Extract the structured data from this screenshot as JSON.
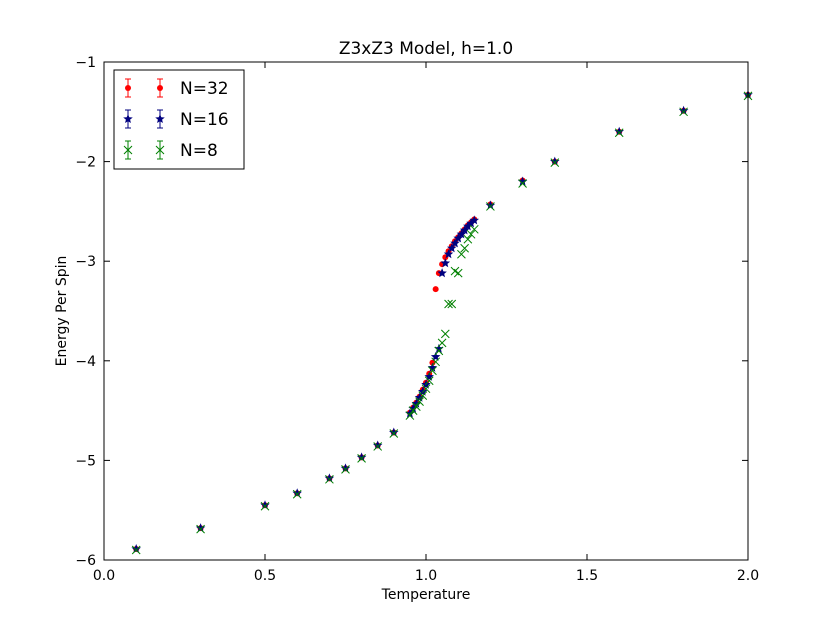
{
  "chart_data": {
    "type": "scatter",
    "title": "Z3xZ3 Model, h=1.0",
    "xlabel": "Temperature",
    "ylabel": "Energy Per Spin",
    "xlim": [
      0.0,
      2.0
    ],
    "ylim": [
      -6,
      -1
    ],
    "xticks": [
      "0.0",
      "0.5",
      "1.0",
      "1.5",
      "2.0"
    ],
    "yticks": [
      "−6",
      "−5",
      "−4",
      "−3",
      "−2",
      "−1"
    ],
    "grid": false,
    "legend_position": "top-left",
    "series": [
      {
        "name": "N=32",
        "color": "#ff0000",
        "marker": "dot",
        "x": [
          0.1,
          0.3,
          0.5,
          0.6,
          0.7,
          0.75,
          0.8,
          0.85,
          0.9,
          0.95,
          0.96,
          0.97,
          0.98,
          0.99,
          1.0,
          1.01,
          1.02,
          1.03,
          1.04,
          1.05,
          1.06,
          1.07,
          1.08,
          1.09,
          1.1,
          1.11,
          1.12,
          1.13,
          1.14,
          1.15,
          1.2,
          1.3,
          1.4,
          1.6,
          1.8,
          2.0
        ],
        "y": [
          -5.89,
          -5.68,
          -5.45,
          -5.33,
          -5.18,
          -5.08,
          -4.97,
          -4.85,
          -4.72,
          -4.52,
          -4.47,
          -4.42,
          -4.36,
          -4.29,
          -4.22,
          -4.13,
          -4.02,
          -3.28,
          -3.12,
          -3.03,
          -2.96,
          -2.9,
          -2.85,
          -2.8,
          -2.76,
          -2.72,
          -2.68,
          -2.64,
          -2.61,
          -2.58,
          -2.43,
          -2.19,
          -2.0,
          -1.7,
          -1.49,
          -1.33
        ]
      },
      {
        "name": "N=16",
        "color": "#00007f",
        "marker": "star",
        "x": [
          0.1,
          0.3,
          0.5,
          0.6,
          0.7,
          0.75,
          0.8,
          0.85,
          0.9,
          0.95,
          0.96,
          0.97,
          0.98,
          0.99,
          1.0,
          1.01,
          1.02,
          1.03,
          1.04,
          1.05,
          1.06,
          1.07,
          1.08,
          1.09,
          1.1,
          1.11,
          1.12,
          1.13,
          1.14,
          1.15,
          1.2,
          1.3,
          1.4,
          1.6,
          1.8,
          2.0
        ],
        "y": [
          -5.89,
          -5.68,
          -5.45,
          -5.33,
          -5.18,
          -5.08,
          -4.97,
          -4.85,
          -4.72,
          -4.53,
          -4.48,
          -4.43,
          -4.37,
          -4.31,
          -4.24,
          -4.16,
          -4.07,
          -3.96,
          -3.88,
          -3.12,
          -3.02,
          -2.93,
          -2.87,
          -2.82,
          -2.77,
          -2.73,
          -2.69,
          -2.65,
          -2.62,
          -2.59,
          -2.44,
          -2.2,
          -2.0,
          -1.7,
          -1.49,
          -1.33
        ]
      },
      {
        "name": "N=8",
        "color": "#008000",
        "marker": "x",
        "x": [
          0.1,
          0.3,
          0.5,
          0.6,
          0.7,
          0.75,
          0.8,
          0.85,
          0.9,
          0.95,
          0.96,
          0.97,
          0.98,
          0.99,
          1.0,
          1.01,
          1.02,
          1.03,
          1.04,
          1.05,
          1.06,
          1.07,
          1.08,
          1.09,
          1.1,
          1.11,
          1.12,
          1.13,
          1.14,
          1.15,
          1.2,
          1.3,
          1.4,
          1.6,
          1.8,
          2.0
        ],
        "y": [
          -5.9,
          -5.69,
          -5.46,
          -5.34,
          -5.19,
          -5.09,
          -4.98,
          -4.86,
          -4.73,
          -4.55,
          -4.5,
          -4.46,
          -4.41,
          -4.35,
          -4.28,
          -4.2,
          -4.1,
          -4.01,
          -3.9,
          -3.82,
          -3.73,
          -3.43,
          -3.43,
          -3.1,
          -3.12,
          -2.93,
          -2.87,
          -2.78,
          -2.73,
          -2.68,
          -2.45,
          -2.22,
          -2.01,
          -1.71,
          -1.5,
          -1.34
        ]
      }
    ]
  }
}
